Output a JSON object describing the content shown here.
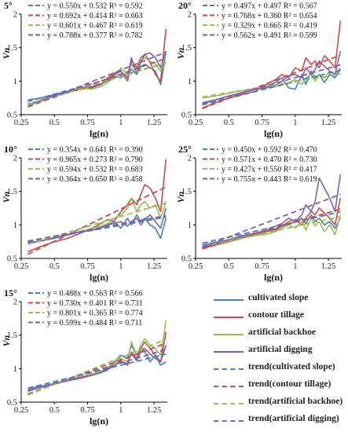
{
  "colors": {
    "cultivated_slope": "#4a7ebb",
    "contour_tillage": "#c0504d",
    "artificial_backhoe": "#9bbb59",
    "artificial_digging": "#7f62a8"
  },
  "chart_data": [
    {
      "type": "line",
      "title": "5°",
      "xlabel": "lg(n)",
      "ylabel": "Vn",
      "xlim": [
        0.25,
        1.35
      ],
      "ylim": [
        0.5,
        2
      ],
      "xticks": [
        "0.25",
        "0.5",
        "0.75",
        "1",
        "1.25"
      ],
      "yticks": [
        "0.5",
        "1",
        "1.5",
        "2"
      ],
      "equations": [
        "y = 0.550x + 0.532   R² = 0.592",
        "y = 0.692x + 0.414   R² = 0.663",
        "y = 0.601x + 0.467   R² = 0.619",
        "y = 0.788x + 0.377   R² = 0.782"
      ],
      "x": [
        0.3,
        0.4,
        0.5,
        0.6,
        0.7,
        0.78,
        0.85,
        0.9,
        0.95,
        1.0,
        1.05,
        1.08,
        1.12,
        1.15,
        1.18,
        1.22,
        1.26,
        1.3,
        1.34
      ],
      "series": [
        {
          "values": [
            0.72,
            0.75,
            0.8,
            0.85,
            0.88,
            0.92,
            0.96,
            1.0,
            1.08,
            1.05,
            1.12,
            1.18,
            1.1,
            1.22,
            1.25,
            1.2,
            1.15,
            0.95,
            1.42
          ]
        },
        {
          "values": [
            0.66,
            0.7,
            0.78,
            0.83,
            0.88,
            0.9,
            0.95,
            1.05,
            1.12,
            1.15,
            1.0,
            1.3,
            1.2,
            1.35,
            1.4,
            1.28,
            1.1,
            1.0,
            1.78
          ]
        },
        {
          "values": [
            0.63,
            0.7,
            0.78,
            0.85,
            0.9,
            0.88,
            0.92,
            0.98,
            1.05,
            1.2,
            1.1,
            1.25,
            1.15,
            1.3,
            1.35,
            1.3,
            1.25,
            1.15,
            1.4
          ]
        },
        {
          "values": [
            0.65,
            0.72,
            0.79,
            0.84,
            0.9,
            0.92,
            0.95,
            1.02,
            1.1,
            1.15,
            1.05,
            1.35,
            1.1,
            1.28,
            1.4,
            1.42,
            1.35,
            1.2,
            1.45
          ]
        }
      ],
      "trends": [
        [
          0.55,
          0.532
        ],
        [
          0.692,
          0.414
        ],
        [
          0.601,
          0.467
        ],
        [
          0.788,
          0.377
        ]
      ]
    },
    {
      "type": "line",
      "title": "20°",
      "xlabel": "lg(n)",
      "ylabel": "Vn",
      "xlim": [
        0.25,
        1.35
      ],
      "ylim": [
        0.5,
        2
      ],
      "xticks": [
        "0.25",
        "0.5",
        "0.75",
        "1",
        "1.25"
      ],
      "yticks": [
        "0.5",
        "1",
        "1.5",
        "2"
      ],
      "equations": [
        "y = 0.497x + 0.497   R² = 0.567",
        "y = 0.768x + 0.360   R² = 0.654",
        "y = 0.329x + 0.665   R² = 0.419",
        "y = 0.562x + 0.491   R² = 0.599"
      ],
      "x": [
        0.3,
        0.4,
        0.5,
        0.6,
        0.7,
        0.78,
        0.85,
        0.9,
        0.95,
        1.0,
        1.05,
        1.08,
        1.12,
        1.15,
        1.18,
        1.22,
        1.26,
        1.3,
        1.34
      ],
      "series": [
        {
          "values": [
            0.68,
            0.72,
            0.78,
            0.82,
            0.88,
            0.92,
            0.98,
            1.05,
            0.9,
            0.88,
            1.1,
            0.95,
            1.15,
            1.05,
            1.1,
            0.98,
            1.1,
            1.05,
            1.18
          ]
        },
        {
          "values": [
            0.6,
            0.68,
            0.75,
            0.8,
            0.85,
            0.95,
            1.02,
            1.1,
            1.05,
            1.2,
            1.15,
            1.35,
            1.25,
            1.3,
            1.2,
            1.38,
            1.3,
            1.2,
            1.9
          ]
        },
        {
          "values": [
            0.75,
            0.78,
            0.82,
            0.86,
            0.88,
            0.9,
            0.92,
            0.95,
            0.98,
            1.02,
            0.95,
            1.05,
            1.1,
            1.0,
            1.1,
            1.05,
            1.15,
            1.1,
            1.2
          ]
        },
        {
          "values": [
            0.66,
            0.72,
            0.78,
            0.83,
            0.88,
            0.9,
            0.94,
            1.0,
            1.08,
            1.1,
            1.05,
            1.2,
            1.1,
            1.18,
            1.3,
            1.22,
            1.15,
            1.1,
            1.45
          ]
        }
      ],
      "trends": [
        [
          0.497,
          0.497
        ],
        [
          0.768,
          0.36
        ],
        [
          0.329,
          0.665
        ],
        [
          0.562,
          0.491
        ]
      ]
    },
    {
      "type": "line",
      "title": "10°",
      "xlabel": "lg(n)",
      "ylabel": "Vn",
      "xlim": [
        0.25,
        1.35
      ],
      "ylim": [
        0.5,
        2
      ],
      "xticks": [
        "0.25",
        "0.5",
        "0.75",
        "1",
        "1.25"
      ],
      "yticks": [
        "0.5",
        "1",
        "1.5",
        "2"
      ],
      "equations": [
        "y = 0.354x + 0.641   R² = 0.390",
        "y = 0.965x + 0.273   R² = 0.790",
        "y = 0.594x + 0.532   R² = 0.683",
        "y = 0.364x + 0.650   R² = 0.458"
      ],
      "x": [
        0.3,
        0.4,
        0.5,
        0.6,
        0.7,
        0.78,
        0.85,
        0.9,
        0.95,
        1.0,
        1.05,
        1.08,
        1.12,
        1.15,
        1.18,
        1.22,
        1.26,
        1.3,
        1.34
      ],
      "series": [
        {
          "values": [
            0.72,
            0.76,
            0.82,
            0.86,
            0.9,
            0.92,
            0.96,
            1.0,
            1.05,
            0.95,
            1.1,
            1.0,
            1.15,
            1.05,
            1.1,
            1.0,
            0.95,
            0.8,
            1.1
          ]
        },
        {
          "values": [
            0.6,
            0.68,
            0.75,
            0.8,
            0.88,
            0.95,
            1.02,
            1.08,
            1.05,
            1.2,
            1.3,
            1.4,
            1.3,
            1.45,
            1.6,
            1.55,
            1.4,
            1.2,
            1.98
          ]
        },
        {
          "values": [
            0.74,
            0.76,
            0.82,
            0.86,
            0.9,
            0.95,
            0.98,
            1.02,
            1.1,
            1.15,
            1.25,
            1.4,
            1.2,
            1.3,
            1.35,
            1.25,
            1.3,
            1.1,
            1.35
          ]
        },
        {
          "values": [
            0.73,
            0.76,
            0.8,
            0.85,
            0.9,
            0.92,
            0.95,
            1.0,
            1.02,
            1.05,
            0.98,
            1.05,
            1.1,
            1.0,
            1.08,
            1.15,
            1.05,
            0.95,
            1.25
          ]
        }
      ],
      "trends": [
        [
          0.354,
          0.641
        ],
        [
          0.965,
          0.273
        ],
        [
          0.594,
          0.532
        ],
        [
          0.364,
          0.65
        ]
      ]
    },
    {
      "type": "line",
      "title": "25°",
      "xlabel": "lg(n)",
      "ylabel": "Vn",
      "xlim": [
        0.25,
        1.35
      ],
      "ylim": [
        0.5,
        2
      ],
      "xticks": [
        "0.25",
        "0.5",
        "0.75",
        "1",
        "1.25"
      ],
      "yticks": [
        "0.5",
        "1",
        "1.5",
        "2"
      ],
      "equations": [
        "y = 0.450x + 0.592   R² = 0.470",
        "y = 0.571x + 0.470   R² = 0.730",
        "y = 0.427x + 0.550   R² = 0.417",
        "y = 0.755x + 0.443   R² = 0.619"
      ],
      "x": [
        0.3,
        0.4,
        0.5,
        0.6,
        0.7,
        0.78,
        0.85,
        0.9,
        0.95,
        1.0,
        1.05,
        1.08,
        1.12,
        1.15,
        1.18,
        1.22,
        1.26,
        1.3,
        1.34
      ],
      "series": [
        {
          "values": [
            0.7,
            0.74,
            0.78,
            0.82,
            0.86,
            0.9,
            0.94,
            0.98,
            1.0,
            1.05,
            1.1,
            1.02,
            1.15,
            1.05,
            1.1,
            1.0,
            1.05,
            0.95,
            1.1
          ]
        },
        {
          "values": [
            0.65,
            0.7,
            0.75,
            0.8,
            0.85,
            0.9,
            0.92,
            0.98,
            1.05,
            1.08,
            1.0,
            1.1,
            1.2,
            1.15,
            1.25,
            1.18,
            1.1,
            1.0,
            1.4
          ]
        },
        {
          "values": [
            0.68,
            0.72,
            0.76,
            0.8,
            0.84,
            0.86,
            0.9,
            0.95,
            1.0,
            0.95,
            1.05,
            0.92,
            1.1,
            0.98,
            1.05,
            0.9,
            1.0,
            0.85,
            1.15
          ]
        },
        {
          "values": [
            0.66,
            0.72,
            0.78,
            0.84,
            0.88,
            0.92,
            0.98,
            1.02,
            1.1,
            1.05,
            1.15,
            1.3,
            1.2,
            1.35,
            1.7,
            1.55,
            1.4,
            1.2,
            1.75
          ]
        }
      ],
      "trends": [
        [
          0.45,
          0.592
        ],
        [
          0.571,
          0.47
        ],
        [
          0.427,
          0.55
        ],
        [
          0.755,
          0.443
        ]
      ]
    },
    {
      "type": "line",
      "title": "15°",
      "xlabel": "lg(n)",
      "ylabel": "Vn",
      "xlim": [
        0.25,
        1.35
      ],
      "ylim": [
        0.5,
        2
      ],
      "xticks": [
        "0.25",
        "0.5",
        "0.75",
        "1",
        "1.25"
      ],
      "yticks": [
        "0.5",
        "1",
        "1.5",
        "2"
      ],
      "equations": [
        "y = 0.488x + 0.563   R² = 0.566",
        "y = 0.730x + 0.401   R² = 0.731",
        "y = 0.801x + 0.365   R² = 0.774",
        "y = 0.599x + 0.484   R² = 0.711"
      ],
      "x": [
        0.3,
        0.4,
        0.5,
        0.6,
        0.7,
        0.78,
        0.85,
        0.9,
        0.95,
        1.0,
        1.05,
        1.08,
        1.12,
        1.15,
        1.18,
        1.22,
        1.26,
        1.3,
        1.34
      ],
      "series": [
        {
          "values": [
            0.7,
            0.74,
            0.78,
            0.82,
            0.86,
            0.9,
            0.95,
            1.0,
            1.1,
            1.2,
            1.15,
            1.35,
            1.2,
            1.3,
            1.25,
            1.1,
            1.2,
            1.05,
            1.1
          ]
        },
        {
          "values": [
            0.68,
            0.72,
            0.77,
            0.82,
            0.86,
            0.9,
            0.94,
            0.98,
            1.05,
            1.12,
            1.05,
            1.25,
            1.15,
            1.3,
            1.4,
            1.3,
            1.2,
            1.1,
            1.55
          ]
        },
        {
          "values": [
            0.66,
            0.72,
            0.78,
            0.84,
            0.88,
            0.92,
            0.96,
            1.02,
            1.08,
            1.15,
            1.1,
            1.4,
            1.2,
            1.35,
            1.45,
            1.35,
            1.3,
            1.2,
            1.72
          ]
        },
        {
          "values": [
            0.67,
            0.72,
            0.77,
            0.82,
            0.87,
            0.9,
            0.94,
            1.0,
            1.05,
            1.1,
            1.08,
            1.22,
            1.12,
            1.25,
            1.3,
            1.22,
            1.15,
            1.1,
            1.35
          ]
        }
      ],
      "trends": [
        [
          0.488,
          0.563
        ],
        [
          0.73,
          0.401
        ],
        [
          0.801,
          0.365
        ],
        [
          0.599,
          0.484
        ]
      ]
    }
  ],
  "legend": {
    "items": [
      {
        "label": "cultivated slope",
        "series": "cultivated_slope",
        "style": "solid"
      },
      {
        "label": "contour tillage",
        "series": "contour_tillage",
        "style": "solid"
      },
      {
        "label": "artificial backhoe",
        "series": "artificial_backhoe",
        "style": "solid"
      },
      {
        "label": "artificial digging",
        "series": "artificial_digging",
        "style": "solid"
      },
      {
        "label": "trend(cultivated slope)",
        "series": "cultivated_slope",
        "style": "dashed"
      },
      {
        "label": "trend(contour tillage)",
        "series": "contour_tillage",
        "style": "dashed"
      },
      {
        "label": "trend(artificial backhoe)",
        "series": "artificial_backhoe",
        "style": "dashed"
      },
      {
        "label": "trend(artificial digging)",
        "series": "artificial_digging",
        "style": "dashed"
      }
    ]
  }
}
